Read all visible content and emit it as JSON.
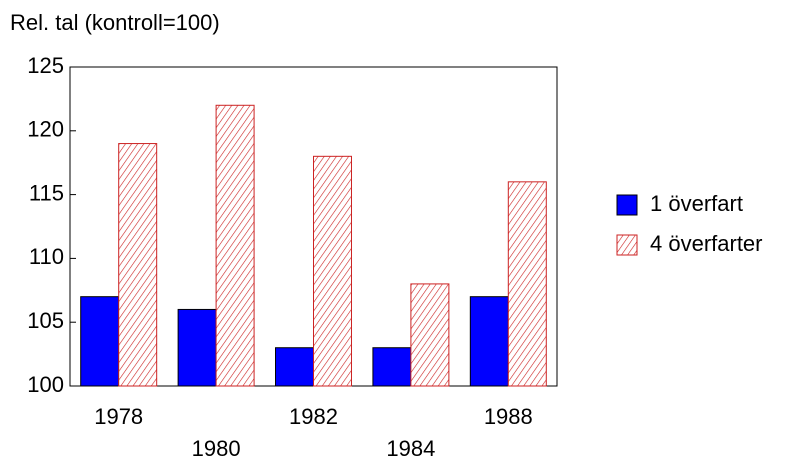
{
  "chart_data": {
    "type": "bar",
    "y_label": "Rel. tal (kontroll=100)",
    "categories": [
      "1978",
      "1980",
      "1982",
      "1984",
      "1988"
    ],
    "series": [
      {
        "name": "1 överfart",
        "color": "#0000ff",
        "pattern": "solid",
        "values": [
          107,
          106,
          103,
          103,
          107
        ]
      },
      {
        "name": "4 överfarter",
        "color": "#cc2222",
        "pattern": "hatch",
        "values": [
          119,
          122,
          118,
          108,
          116
        ]
      }
    ],
    "ylim": [
      100,
      125
    ],
    "yticks": [
      100,
      105,
      110,
      115,
      120,
      125
    ],
    "grid": false,
    "legend": "right"
  }
}
